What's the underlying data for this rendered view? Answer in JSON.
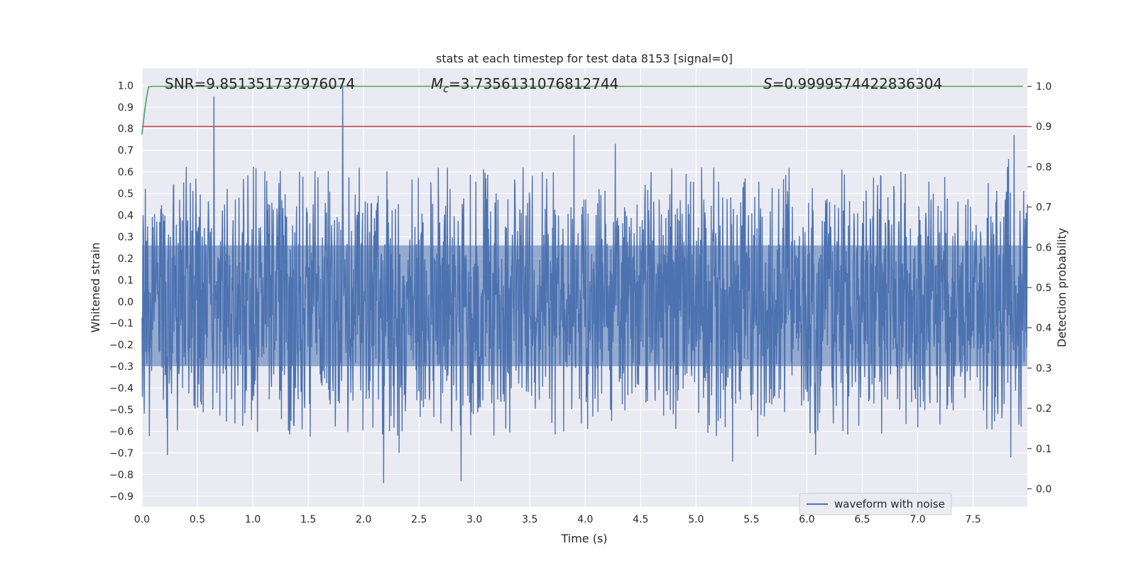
{
  "chart_data": {
    "type": "line",
    "title": "stats at each timestep for test data 8153 [signal=0]",
    "xlabel": "Time (s)",
    "ylabel_left": "Whitened strain",
    "ylabel_right": "Detection probability",
    "xlim": [
      0.0,
      7.99
    ],
    "ylim_left": [
      -0.95,
      1.08
    ],
    "ylim_right": [
      -0.045,
      1.045
    ],
    "x_ticks": [
      "0.0",
      "0.5",
      "1.0",
      "1.5",
      "2.0",
      "2.5",
      "3.0",
      "3.5",
      "4.0",
      "4.5",
      "5.0",
      "5.5",
      "6.0",
      "6.5",
      "7.0",
      "7.5"
    ],
    "y_ticks_left": [
      "−0.9",
      "−0.8",
      "−0.7",
      "−0.6",
      "−0.5",
      "−0.4",
      "−0.3",
      "−0.2",
      "−0.1",
      "0.0",
      "0.1",
      "0.2",
      "0.3",
      "0.4",
      "0.5",
      "0.6",
      "0.7",
      "0.8",
      "0.9",
      "1.0"
    ],
    "y_ticks_right": [
      "0.0",
      "0.1",
      "0.2",
      "0.3",
      "0.4",
      "0.5",
      "0.6",
      "0.7",
      "0.8",
      "0.9",
      "1.0"
    ],
    "annotations": {
      "snr": "SNR=9.851351737976074",
      "mc_symbol": "M",
      "mc_sub": "c",
      "mc_value": "=3.7356131076812744",
      "s_symbol": "S",
      "s_value": "=0.9999574422836304"
    },
    "legend": {
      "label": "waveform with noise",
      "position": "lower-right"
    },
    "series": [
      {
        "name": "waveform with noise",
        "axis": "left",
        "color": "#4c72b0",
        "kind": "noise",
        "typical_envelope": [
          -0.5,
          0.5
        ],
        "peaks": [
          [
            0.65,
            0.95
          ],
          [
            1.81,
            1.0
          ],
          [
            3.9,
            0.77
          ],
          [
            4.27,
            0.73
          ],
          [
            7.87,
            0.77
          ],
          [
            7.82,
            0.66
          ],
          [
            2.18,
            -0.84
          ],
          [
            2.88,
            -0.83
          ],
          [
            5.33,
            -0.74
          ],
          [
            7.84,
            -0.72
          ],
          [
            0.23,
            -0.71
          ],
          [
            2.32,
            -0.7
          ],
          [
            6.08,
            -0.71
          ]
        ]
      },
      {
        "name": "detection probability",
        "axis": "right",
        "color": "#55a868",
        "x": [
          0.0,
          0.02,
          0.04,
          0.06,
          0.1,
          0.2,
          7.95
        ],
        "y": [
          0.88,
          0.93,
          0.97,
          0.999,
          1.0,
          1.0,
          1.0
        ]
      },
      {
        "name": "threshold",
        "axis": "right",
        "color": "#c44e52",
        "y_value": 0.9
      }
    ],
    "colors": {
      "background": "#eaeaf2",
      "grid": "#ffffff",
      "noise": "#4c72b0",
      "prob": "#55a868",
      "threshold": "#c44e52"
    }
  }
}
